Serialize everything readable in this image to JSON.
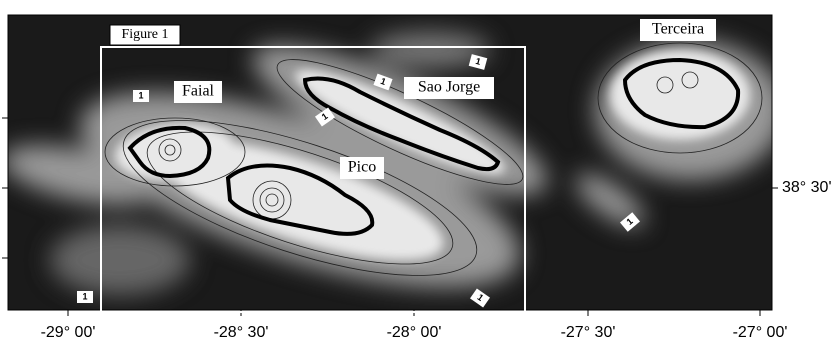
{
  "figure_label": "Figure 1",
  "islands": [
    "Faial",
    "Pico",
    "Sao Jorge",
    "Terceira"
  ],
  "longitude_labels": [
    "-29° 00'",
    "-28° 30'",
    "-28° 00'",
    "-27° 30'",
    "-27° 00'"
  ],
  "latitude_labels": [
    "38° 30'"
  ],
  "contour_labels": [
    "1",
    "1",
    "1",
    "1",
    "1",
    "1",
    "1"
  ]
}
